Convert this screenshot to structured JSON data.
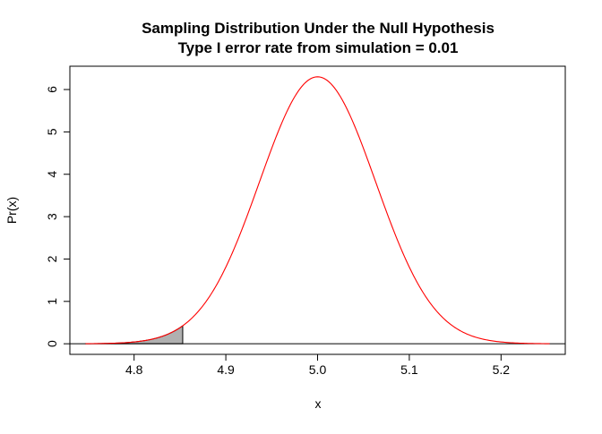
{
  "chart_data": {
    "type": "line",
    "title": "Sampling Distribution Under the Null Hypothesis",
    "subtitle": "Type I error rate from simulation = 0.01",
    "xlabel": "x",
    "ylabel": "Pr(x)",
    "xlim": [
      4.73,
      5.27
    ],
    "ylim": [
      -0.25,
      6.55
    ],
    "xticks": [
      4.8,
      4.9,
      5.0,
      5.1,
      5.2
    ],
    "xtick_labels": [
      "4.8",
      "4.9",
      "5.0",
      "5.1",
      "5.2"
    ],
    "yticks": [
      0,
      1,
      2,
      3,
      4,
      5,
      6
    ],
    "ytick_labels": [
      "0",
      "1",
      "2",
      "3",
      "4",
      "5",
      "6"
    ],
    "grid": false,
    "curve": {
      "color": "#ff0000",
      "x_range": [
        4.747,
        5.253
      ],
      "mean": 5.0,
      "sd": 0.0633,
      "peak": 6.3
    },
    "shaded_region": {
      "x_from": 4.747,
      "x_to": 4.853,
      "fill": "#b0b0b0",
      "stroke": "#000000"
    },
    "baseline": {
      "y": 0,
      "color": "#000000"
    }
  }
}
